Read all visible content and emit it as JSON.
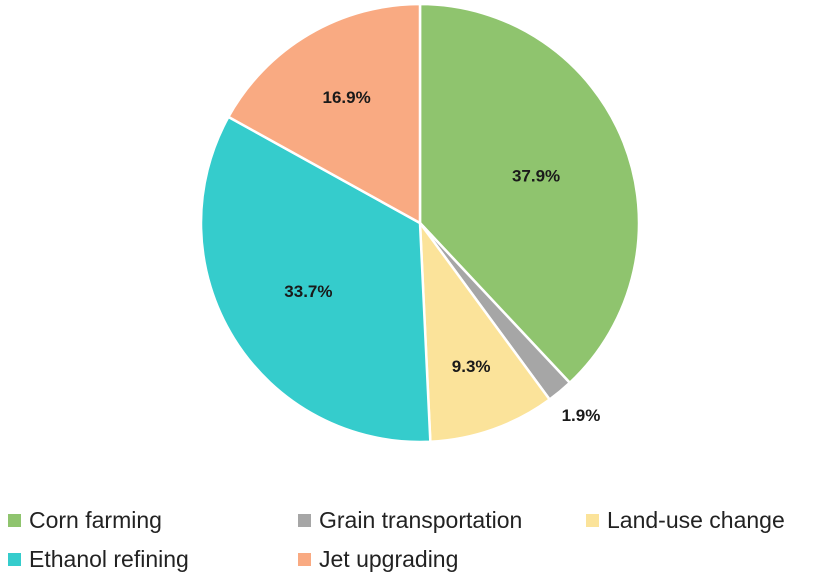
{
  "chart_data": {
    "type": "pie",
    "start_angle_deg": 0,
    "direction": "clockwise",
    "slices": [
      {
        "name": "Corn farming",
        "value": 37.9,
        "label": "37.9%",
        "color": "#8fc46e"
      },
      {
        "name": "Grain transportation",
        "value": 1.9,
        "label": "1.9%",
        "color": "#a6a6a6"
      },
      {
        "name": "Land-use change",
        "value": 9.3,
        "label": "9.3%",
        "color": "#fbe39a"
      },
      {
        "name": "Ethanol refining",
        "value": 33.7,
        "label": "33.7%",
        "color": "#35cccc"
      },
      {
        "name": "Jet upgrading",
        "value": 16.9,
        "label": "16.9%",
        "color": "#f9aa82"
      }
    ],
    "legend_placement": "bottom",
    "label_placement": "inside, except the smallest slice outside"
  }
}
